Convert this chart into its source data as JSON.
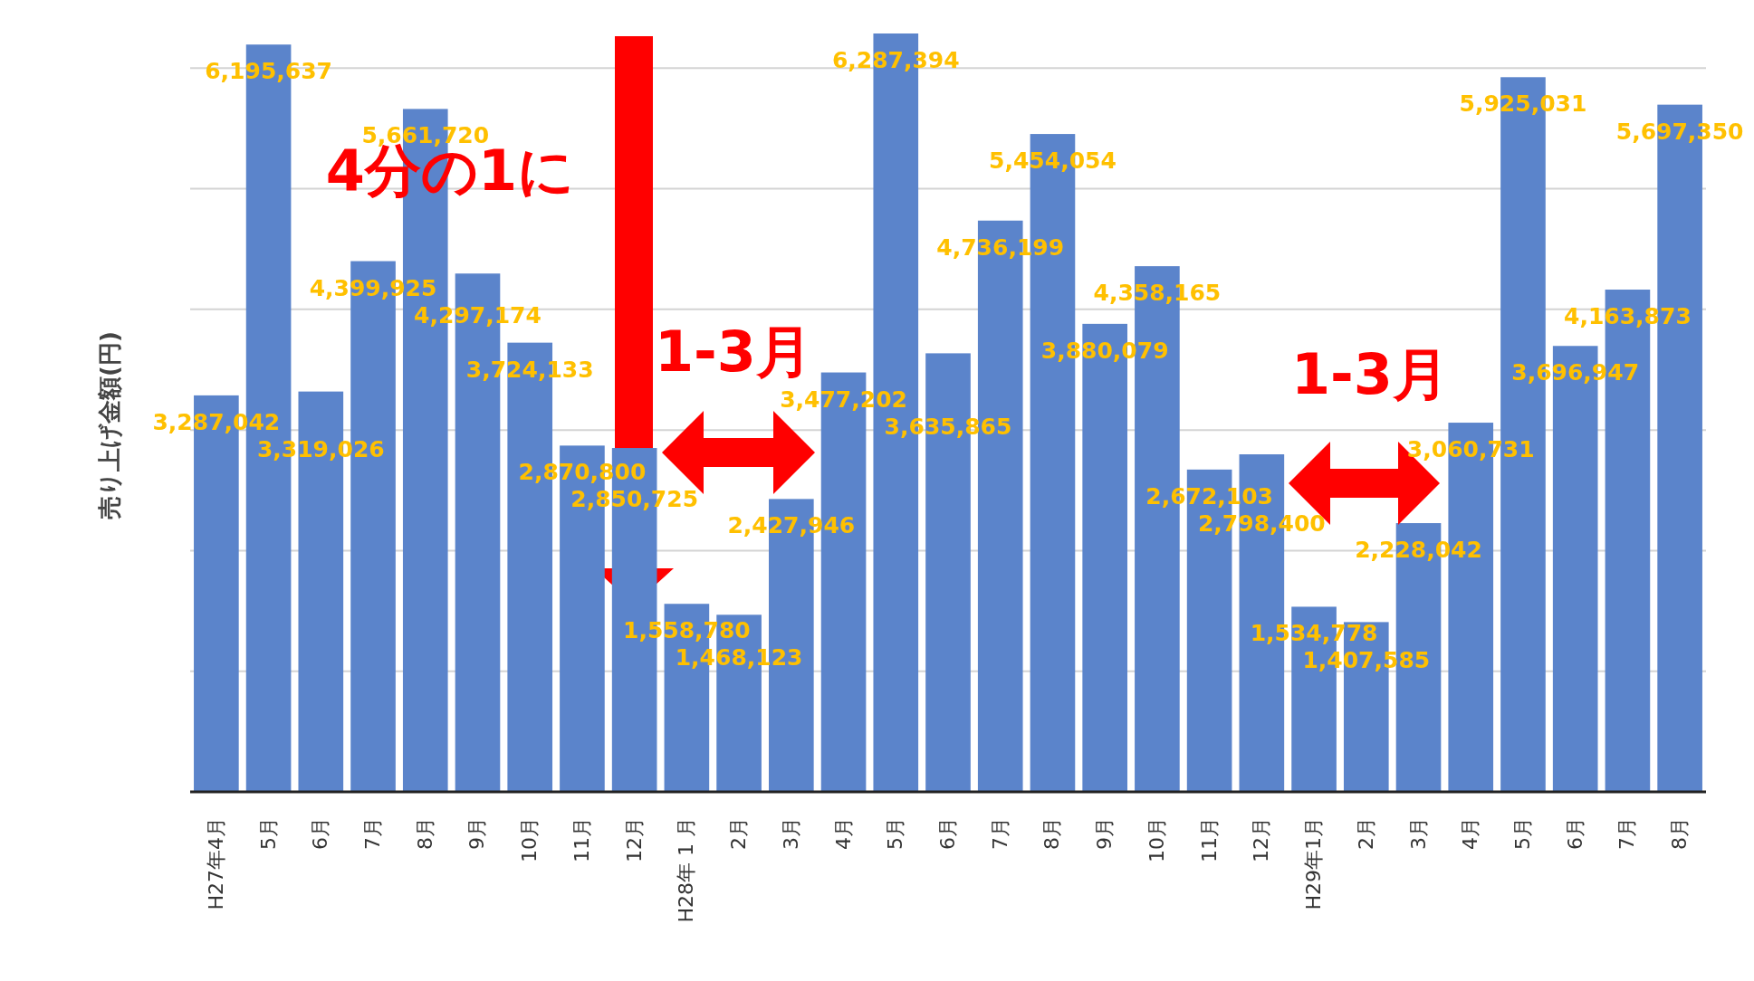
{
  "chart_data": {
    "type": "bar",
    "ylabel": "売り上げ金額(円)",
    "categories": [
      "H27年4月",
      "5月",
      "6月",
      "7月",
      "8月",
      "9月",
      "10月",
      "11月",
      "12月",
      "H28年 1 月",
      "2月",
      "3月",
      "4月",
      "5月",
      "6月",
      "7月",
      "8月",
      "9月",
      "10月",
      "11月",
      "12月",
      "H29年1月",
      "2月",
      "3月",
      "4月",
      "5月",
      "6月",
      "7月",
      "8月"
    ],
    "values": [
      3287042,
      6195637,
      3319026,
      4399925,
      5661720,
      4297174,
      3724133,
      2870800,
      2850725,
      1558780,
      1468123,
      2427946,
      3477202,
      6287394,
      3635865,
      4736199,
      5454054,
      3880079,
      4358165,
      2672103,
      2798400,
      1534778,
      1407585,
      2228042,
      3060731,
      5925031,
      3696947,
      4163873,
      5697350
    ],
    "color": "#5b84cb",
    "value_labels": [
      "3,287,042",
      "6,195,637",
      "3,319,026",
      "4,399,925",
      "5,661,720",
      "4,297,174",
      "3,724,133",
      "2,870,800",
      "2,850,725",
      "1,558,780",
      "1,468,123",
      "2,427,946",
      "3,477,202",
      "6,287,394",
      "3,635,865",
      "4,736,199",
      "5,454,054",
      "3,880,079",
      "4,358,165",
      "2,672,103",
      "2,798,400",
      "1,534,778",
      "1,407,585",
      "2,228,042",
      "3,060,731",
      "5,925,031",
      "3,696,947",
      "4,163,873",
      "5,697,350"
    ],
    "grid": "y",
    "annotations": [
      "4分の1に",
      "1-3月",
      "1-3月"
    ]
  }
}
